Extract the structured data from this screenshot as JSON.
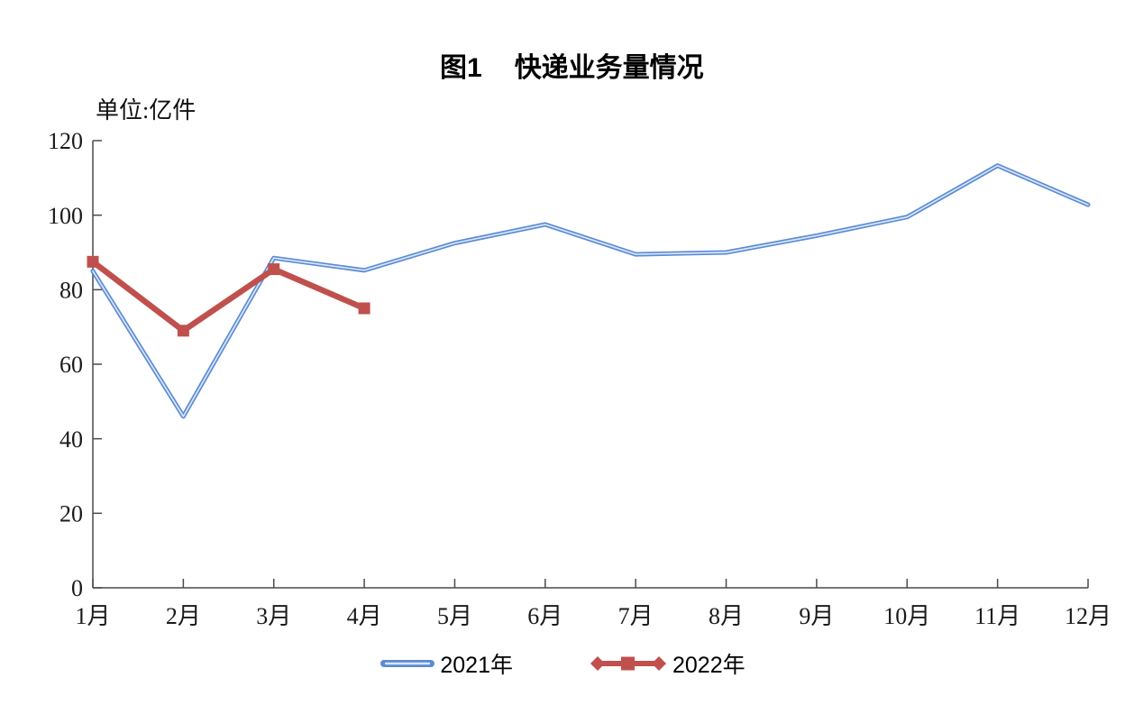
{
  "title": {
    "prefix": "图1",
    "text": "快递业务量情况"
  },
  "unit_label": "单位:亿件",
  "legend": [
    {
      "label": "2021年",
      "color": "#5B8BD5",
      "highlight": "#D9E6F8"
    },
    {
      "label": "2022年",
      "color": "#C0504D"
    }
  ],
  "colors": {
    "axis": "#4a4a4a",
    "text": "#1a1a1a"
  },
  "chart_data": {
    "type": "line",
    "title": "图1 快递业务量情况",
    "ylabel": "单位:亿件",
    "categories": [
      "1月",
      "2月",
      "3月",
      "4月",
      "5月",
      "6月",
      "7月",
      "8月",
      "9月",
      "10月",
      "11月",
      "12月"
    ],
    "series": [
      {
        "name": "2021年",
        "color": "#5B8BD5",
        "highlight": "#D9E6F8",
        "marker": "none",
        "values": [
          85,
          46,
          88.5,
          85.2,
          92.5,
          97.5,
          89.5,
          90,
          94.5,
          99.5,
          113.3,
          102.8
        ]
      },
      {
        "name": "2022年",
        "color": "#C0504D",
        "marker": "square",
        "values": [
          87.5,
          69,
          85.5,
          75
        ]
      }
    ],
    "ylim": [
      0,
      120
    ],
    "y_ticks": [
      0,
      20,
      40,
      60,
      80,
      100,
      120
    ],
    "grid": false,
    "legend_position": "bottom"
  }
}
